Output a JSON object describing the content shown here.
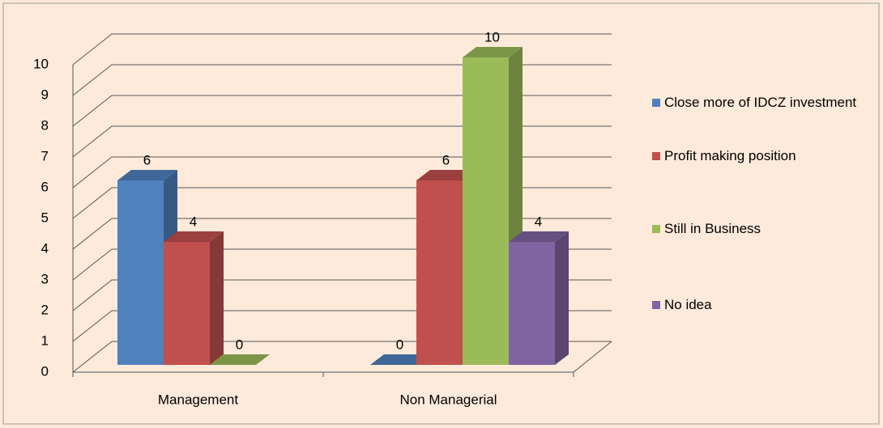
{
  "chart_data": {
    "type": "bar3d",
    "categories": [
      "Management",
      "Non Managerial"
    ],
    "series": [
      {
        "name": "Close more of IDCZ investment",
        "color": "#4f81bd",
        "values": [
          6,
          0
        ]
      },
      {
        "name": "Profit making position",
        "color": "#c0504d",
        "values": [
          4,
          6
        ]
      },
      {
        "name": "Still in Business",
        "color": "#9bbb59",
        "values": [
          0,
          10
        ]
      },
      {
        "name": "No idea",
        "color": "#8064a2",
        "values": [
          null,
          4
        ]
      }
    ],
    "ylim": [
      0,
      10
    ],
    "yticks": [
      0,
      1,
      2,
      3,
      4,
      5,
      6,
      7,
      8,
      9,
      10
    ],
    "grid": true,
    "legend": "right"
  }
}
